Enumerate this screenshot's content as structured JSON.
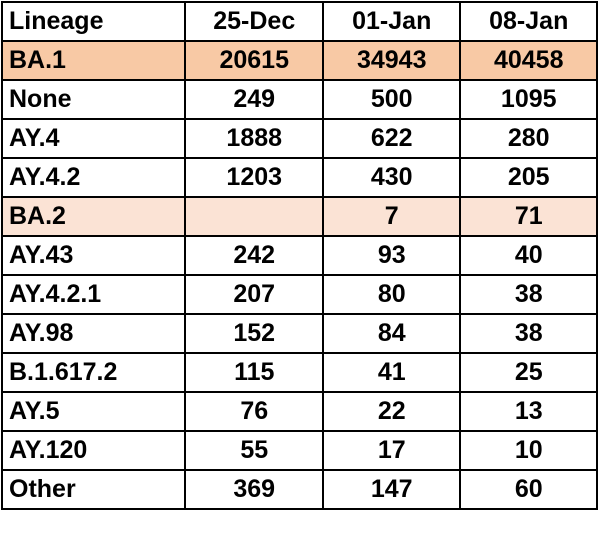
{
  "table": {
    "headers": [
      "Lineage",
      "25-Dec",
      "01-Jan",
      "08-Jan"
    ],
    "rows": [
      {
        "lineage": "BA.1",
        "values": [
          "20615",
          "34943",
          "40458"
        ],
        "highlight": "#f8c9a5"
      },
      {
        "lineage": "None",
        "values": [
          "249",
          "500",
          "1095"
        ]
      },
      {
        "lineage": "AY.4",
        "values": [
          "1888",
          "622",
          "280"
        ]
      },
      {
        "lineage": "AY.4.2",
        "values": [
          "1203",
          "430",
          "205"
        ]
      },
      {
        "lineage": "BA.2",
        "values": [
          "",
          "7",
          "71"
        ],
        "highlight": "#fbe3d5"
      },
      {
        "lineage": "AY.43",
        "values": [
          "242",
          "93",
          "40"
        ]
      },
      {
        "lineage": "AY.4.2.1",
        "values": [
          "207",
          "80",
          "38"
        ]
      },
      {
        "lineage": "AY.98",
        "values": [
          "152",
          "84",
          "38"
        ]
      },
      {
        "lineage": "B.1.617.2",
        "values": [
          "115",
          "41",
          "25"
        ]
      },
      {
        "lineage": "AY.5",
        "values": [
          "76",
          "22",
          "13"
        ]
      },
      {
        "lineage": "AY.120",
        "values": [
          "55",
          "17",
          "10"
        ]
      },
      {
        "lineage": "Other",
        "values": [
          "369",
          "147",
          "60"
        ]
      }
    ]
  }
}
